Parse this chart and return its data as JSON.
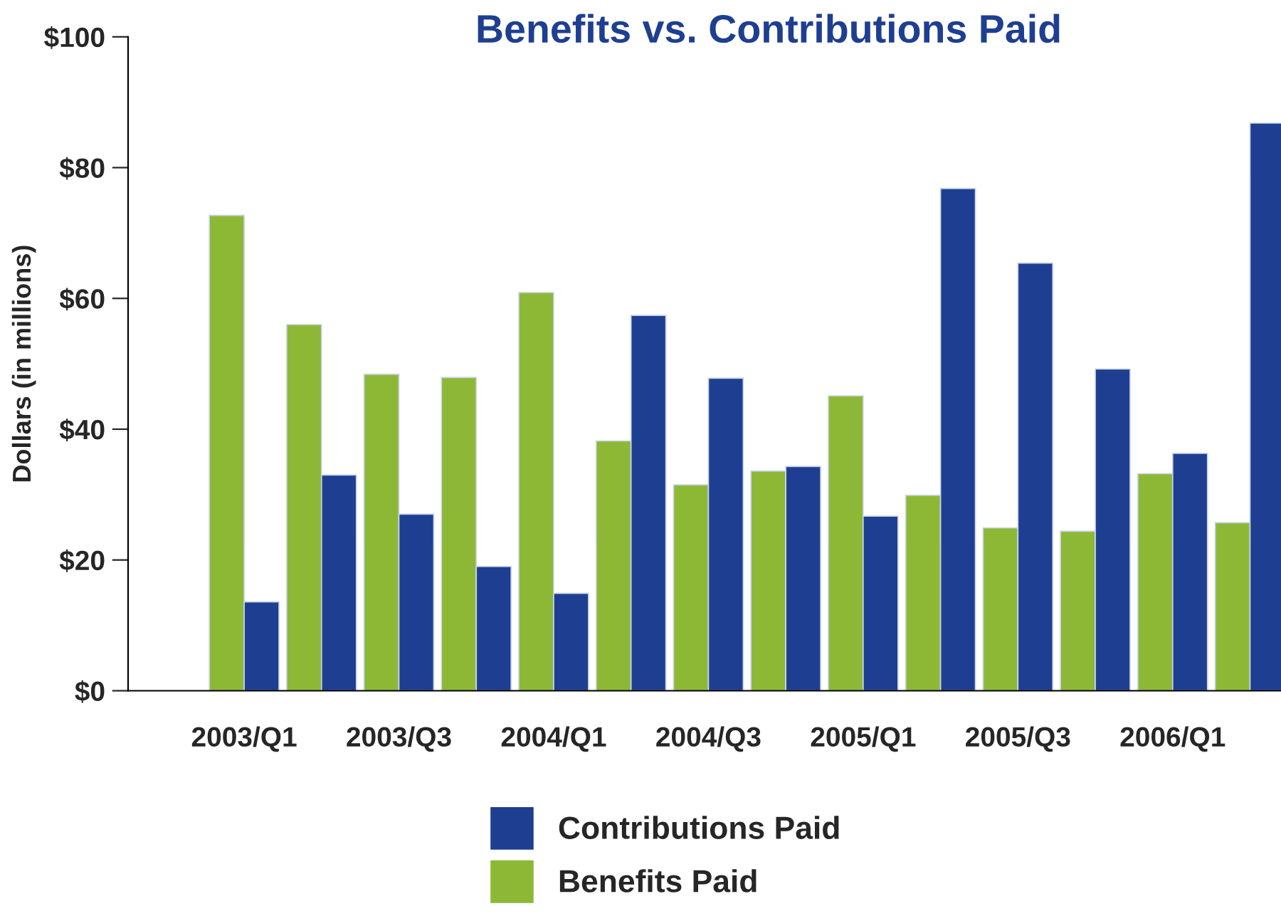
{
  "chart_data": {
    "type": "bar",
    "title": "Benefits vs. Contributions Paid",
    "ylabel": "Dollars (in millions)",
    "categories": [
      "2003/Q1",
      null,
      "2003/Q3",
      null,
      "2004/Q1",
      null,
      "2004/Q3",
      null,
      "2005/Q1",
      null,
      "2005/Q3",
      null,
      "2006/Q1",
      null
    ],
    "series": [
      {
        "name": "Benefits Paid",
        "color": "#8db836",
        "values": [
          72.7,
          56,
          48.4,
          47.9,
          60.9,
          38.2,
          31.5,
          33.6,
          45.1,
          29.9,
          24.9,
          24.4,
          33.2,
          25.7
        ]
      },
      {
        "name": "Contributions Paid",
        "color": "#1e3f91",
        "values": [
          13.6,
          33,
          27,
          19,
          14.9,
          57.4,
          47.8,
          34.3,
          26.7,
          76.8,
          65.4,
          49.2,
          36.3,
          86.8
        ]
      }
    ],
    "ylim": [
      0,
      100
    ],
    "yticks": [
      {
        "value": 0,
        "label": "$0"
      },
      {
        "value": 20,
        "label": "$20"
      },
      {
        "value": 40,
        "label": "$40"
      },
      {
        "value": 60,
        "label": "$60"
      },
      {
        "value": 80,
        "label": "$80"
      },
      {
        "value": 100,
        "label": "$100"
      }
    ],
    "grid": false,
    "legend": "bottom"
  }
}
